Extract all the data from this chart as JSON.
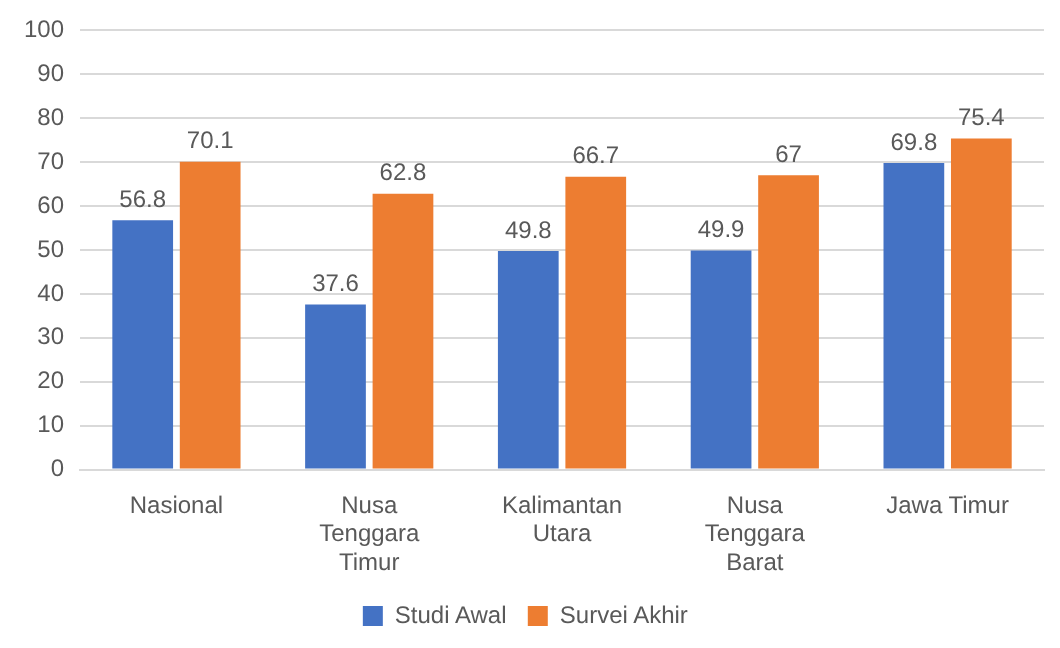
{
  "chart_data": {
    "type": "bar",
    "categories": [
      "Nasional",
      "Nusa Tenggara Timur",
      "Kalimantan Utara",
      "Nusa Tenggara Barat",
      "Jawa Timur"
    ],
    "series": [
      {
        "name": "Studi Awal",
        "color": "#4472c4",
        "values": [
          56.8,
          37.6,
          49.8,
          49.9,
          69.8
        ]
      },
      {
        "name": "Survei Akhir",
        "color": "#ed7d31",
        "values": [
          70.1,
          62.8,
          66.7,
          67,
          75.4
        ]
      }
    ],
    "ylim": [
      0,
      100
    ],
    "yticks": [
      0,
      10,
      20,
      30,
      40,
      50,
      60,
      70,
      80,
      90,
      100
    ],
    "grid": "y",
    "legend": "bottom",
    "data_labels": true
  }
}
